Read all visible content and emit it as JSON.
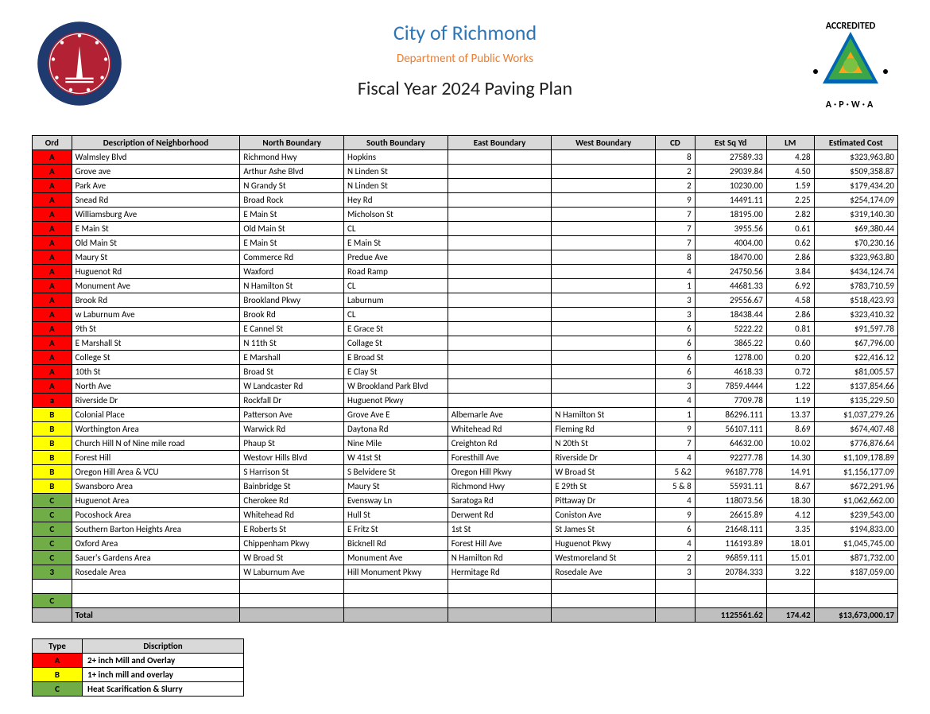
{
  "header": {
    "title1": "City of Richmond",
    "title2": "Department of Public Works",
    "title3": "Fiscal Year 2024 Paving Plan",
    "title1_color": "#2e75b6",
    "title2_color": "#ed7d31",
    "title3_color": "#222222"
  },
  "colors": {
    "ord_A": "#ff0000",
    "ord_B": "#ffff00",
    "ord_C": "#70ad47",
    "header_bg": "#d9d9d9",
    "total_bg": "#bfbfbf",
    "border": "#000000"
  },
  "columns": [
    {
      "key": "ord",
      "label": "Ord"
    },
    {
      "key": "desc",
      "label": "Description of Neighborhood"
    },
    {
      "key": "north",
      "label": "North Boundary"
    },
    {
      "key": "south",
      "label": "South Boundary"
    },
    {
      "key": "east",
      "label": "East Boundary"
    },
    {
      "key": "west",
      "label": "West Boundary"
    },
    {
      "key": "cd",
      "label": "CD"
    },
    {
      "key": "sqyd",
      "label": "Est Sq Yd"
    },
    {
      "key": "lm",
      "label": "LM"
    },
    {
      "key": "cost",
      "label": "Estimated Cost"
    }
  ],
  "rows": [
    {
      "ord": "A",
      "desc": "Walmsley Blvd",
      "north": "Richmond Hwy",
      "south": "Hopkins",
      "east": "",
      "west": "",
      "cd": "8",
      "sqyd": "27589.33",
      "lm": "4.28",
      "cost": "$323,963.80"
    },
    {
      "ord": "A",
      "desc": "Grove ave",
      "north": "Arthur Ashe Blvd",
      "south": "N Linden St",
      "east": "",
      "west": "",
      "cd": "2",
      "sqyd": "29039.84",
      "lm": "4.50",
      "cost": "$509,358.87"
    },
    {
      "ord": "A",
      "desc": "Park Ave",
      "north": "N Grandy St",
      "south": "N Linden St",
      "east": "",
      "west": "",
      "cd": "2",
      "sqyd": "10230.00",
      "lm": "1.59",
      "cost": "$179,434.20"
    },
    {
      "ord": "A",
      "desc": "Snead Rd",
      "north": "Broad Rock",
      "south": "Hey Rd",
      "east": "",
      "west": "",
      "cd": "9",
      "sqyd": "14491.11",
      "lm": "2.25",
      "cost": "$254,174.09"
    },
    {
      "ord": "A",
      "desc": "Williamsburg Ave",
      "north": "E Main St",
      "south": "Micholson St",
      "east": "",
      "west": "",
      "cd": "7",
      "sqyd": "18195.00",
      "lm": "2.82",
      "cost": "$319,140.30"
    },
    {
      "ord": "A",
      "desc": "E Main St",
      "north": "Old Main St",
      "south": "CL",
      "east": "",
      "west": "",
      "cd": "7",
      "sqyd": "3955.56",
      "lm": "0.61",
      "cost": "$69,380.44"
    },
    {
      "ord": "A",
      "desc": "Old Main St",
      "north": "E Main St",
      "south": "E Main St",
      "east": "",
      "west": "",
      "cd": "7",
      "sqyd": "4004.00",
      "lm": "0.62",
      "cost": "$70,230.16"
    },
    {
      "ord": "A",
      "desc": "Maury St",
      "north": "Commerce Rd",
      "south": "Predue Ave",
      "east": "",
      "west": "",
      "cd": "8",
      "sqyd": "18470.00",
      "lm": "2.86",
      "cost": "$323,963.80"
    },
    {
      "ord": "A",
      "desc": "Huguenot Rd",
      "north": "Waxford",
      "south": "Road Ramp",
      "east": "",
      "west": "",
      "cd": "4",
      "sqyd": "24750.56",
      "lm": "3.84",
      "cost": "$434,124.74"
    },
    {
      "ord": "A",
      "desc": "Monument Ave",
      "north": "N Hamilton St",
      "south": "CL",
      "east": "",
      "west": "",
      "cd": "1",
      "sqyd": "44681.33",
      "lm": "6.92",
      "cost": "$783,710.59"
    },
    {
      "ord": "A",
      "desc": "Brook Rd",
      "north": "Brookland Pkwy",
      "south": "Laburnum",
      "east": "",
      "west": "",
      "cd": "3",
      "sqyd": "29556.67",
      "lm": "4.58",
      "cost": "$518,423.93"
    },
    {
      "ord": "A",
      "desc": "w Laburnum Ave",
      "north": "Brook Rd",
      "south": "CL",
      "east": "",
      "west": "",
      "cd": "3",
      "sqyd": "18438.44",
      "lm": "2.86",
      "cost": "$323,410.32"
    },
    {
      "ord": "A",
      "desc": "9th St",
      "north": "E Cannel St",
      "south": "E Grace St",
      "east": "",
      "west": "",
      "cd": "6",
      "sqyd": "5222.22",
      "lm": "0.81",
      "cost": "$91,597.78"
    },
    {
      "ord": "A",
      "desc": "E Marshall St",
      "north": "N 11th St",
      "south": "Collage St",
      "east": "",
      "west": "",
      "cd": "6",
      "sqyd": "3865.22",
      "lm": "0.60",
      "cost": "$67,796.00"
    },
    {
      "ord": "A",
      "desc": "College St",
      "north": "E Marshall",
      "south": "E Broad St",
      "east": "",
      "west": "",
      "cd": "6",
      "sqyd": "1278.00",
      "lm": "0.20",
      "cost": "$22,416.12"
    },
    {
      "ord": "A",
      "desc": "10th St",
      "north": "Broad St",
      "south": "E Clay St",
      "east": "",
      "west": "",
      "cd": "6",
      "sqyd": "4618.33",
      "lm": "0.72",
      "cost": "$81,005.57"
    },
    {
      "ord": "A",
      "desc": "North Ave",
      "north": "W Landcaster Rd",
      "south": "W Brookland Park Blvd",
      "east": "",
      "west": "",
      "cd": "3",
      "sqyd": "7859.4444",
      "lm": "1.22",
      "cost": "$137,854.66"
    },
    {
      "ord": "a",
      "desc": "Riverside Dr",
      "north": "Rockfall Dr",
      "south": "Huguenot Pkwy",
      "east": "",
      "west": "",
      "cd": "4",
      "sqyd": "7709.78",
      "lm": "1.19",
      "cost": "$135,229.50"
    },
    {
      "ord": "B",
      "desc": "Colonial Place",
      "north": "Patterson Ave",
      "south": "Grove Ave E",
      "east": "Albemarle Ave",
      "west": "N Hamilton St",
      "cd": "1",
      "sqyd": "86296.111",
      "lm": "13.37",
      "cost": "$1,037,279.26"
    },
    {
      "ord": "B",
      "desc": "Worthington Area",
      "north": "Warwick Rd",
      "south": "Daytona Rd",
      "east": "Whitehead Rd",
      "west": "Fleming Rd",
      "cd": "9",
      "sqyd": "56107.111",
      "lm": "8.69",
      "cost": "$674,407.48"
    },
    {
      "ord": "B",
      "desc": "Church Hill N of Nine mile road",
      "north": "Phaup St",
      "south": "Nine Mile",
      "east": "Creighton Rd",
      "west": "N 20th St",
      "cd": "7",
      "sqyd": "64632.00",
      "lm": "10.02",
      "cost": "$776,876.64"
    },
    {
      "ord": "B",
      "desc": "Forest Hill",
      "north": "Westovr Hills Blvd",
      "south": "W 41st St",
      "east": "Foresthill  Ave",
      "west": "Riverside Dr",
      "cd": "4",
      "sqyd": "92277.78",
      "lm": "14.30",
      "cost": "$1,109,178.89"
    },
    {
      "ord": "B",
      "desc": "Oregon Hill Area  & VCU",
      "north": "S Harrison St",
      "south": "S Belvidere St",
      "east": "Oregon Hill Pkwy",
      "west": "W Broad St",
      "cd": "5 &2",
      "sqyd": "96187.778",
      "lm": "14.91",
      "cost": "$1,156,177.09"
    },
    {
      "ord": "B",
      "desc": "Swansboro Area",
      "north": "Bainbridge St",
      "south": "Maury St",
      "east": "Richmond Hwy",
      "west": "E 29th St",
      "cd": "5 & 8",
      "sqyd": "55931.11",
      "lm": "8.67",
      "cost": "$672,291.96"
    },
    {
      "ord": "C",
      "desc": "Huguenot Area",
      "north": "Cherokee Rd",
      "south": "Evensway Ln",
      "east": "Saratoga Rd",
      "west": "Pittaway Dr",
      "cd": "4",
      "sqyd": "118073.56",
      "lm": "18.30",
      "cost": "$1,062,662.00"
    },
    {
      "ord": "C",
      "desc": "Pocoshock Area",
      "north": "Whitehead Rd",
      "south": "Hull St",
      "east": "Derwent Rd",
      "west": "Coniston Ave",
      "cd": "9",
      "sqyd": "26615.89",
      "lm": "4.12",
      "cost": "$239,543.00"
    },
    {
      "ord": "C",
      "desc": "Southern Barton Heights Area",
      "north": "E Roberts St",
      "south": "E Fritz St",
      "east": "1st St",
      "west": "St James St",
      "cd": "6",
      "sqyd": "21648.111",
      "lm": "3.35",
      "cost": "$194,833.00"
    },
    {
      "ord": "C",
      "desc": "Oxford Area",
      "north": "Chippenham Pkwy",
      "south": "Bicknell Rd",
      "east": "Forest Hill Ave",
      "west": "Huguenot Pkwy",
      "cd": "4",
      "sqyd": "116193.89",
      "lm": "18.01",
      "cost": "$1,045,745.00"
    },
    {
      "ord": "C",
      "desc": "Sauer's Gardens Area",
      "north": "W Broad St",
      "south": "Monument Ave",
      "east": "N Hamilton Rd",
      "west": "Westmoreland St",
      "cd": "2",
      "sqyd": "96859.111",
      "lm": "15.01",
      "cost": "$871,732.00"
    },
    {
      "ord": "3",
      "desc": "Rosedale Area",
      "north": "W Laburnum Ave",
      "south": "Hill Monument Pkwy",
      "east": "Hermitage Rd",
      "west": "Rosedale Ave",
      "cd": "3",
      "sqyd": "20784.333",
      "lm": "3.22",
      "cost": "$187,059.00"
    },
    {
      "ord": "",
      "desc": "",
      "north": "",
      "south": "",
      "east": "",
      "west": "",
      "cd": "",
      "sqyd": "",
      "lm": "",
      "cost": ""
    },
    {
      "ord": "C",
      "desc": "",
      "north": "",
      "south": "",
      "east": "",
      "west": "",
      "cd": "",
      "sqyd": "",
      "lm": "",
      "cost": ""
    }
  ],
  "total": {
    "label": "Total",
    "sqyd": "1125561.62",
    "lm": "174.42",
    "cost": "$13,673,000.17"
  },
  "legend": {
    "headers": {
      "type": "Type",
      "desc": "Discription"
    },
    "rows": [
      {
        "type": "A",
        "desc": "2+ inch Mill and Overlay",
        "cls": "ord-A"
      },
      {
        "type": "B",
        "desc": "1+ inch mill and overlay",
        "cls": "ord-B"
      },
      {
        "type": "C",
        "desc": "Heat Scarification & Slurry",
        "cls": "ord-C"
      }
    ]
  }
}
